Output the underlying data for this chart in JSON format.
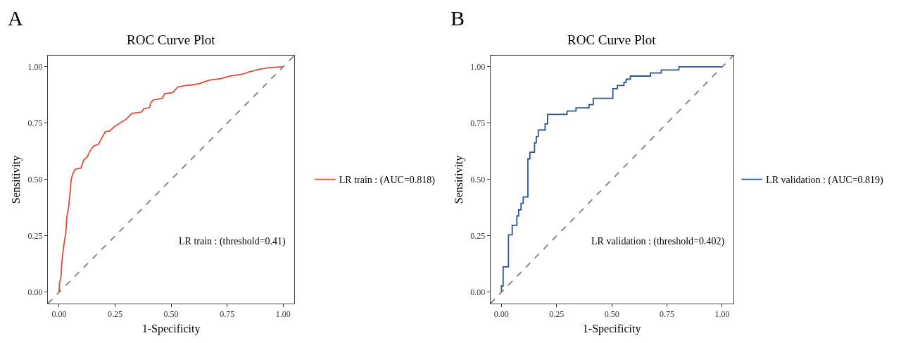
{
  "chart_data": [
    {
      "type": "line",
      "title": "ROC Curve Plot",
      "xlabel": "1-Specificity",
      "ylabel": "Sensitivity",
      "annotations": [
        "A",
        "LR train : (threshold=0.41)"
      ],
      "legend": "right",
      "xlim": [
        -0.05,
        1.05
      ],
      "ylim": [
        -0.05,
        1.05
      ],
      "xticks": [
        {
          "value": 0,
          "label": "0.00"
        },
        {
          "value": 0.25,
          "label": "0.25"
        },
        {
          "value": 0.5,
          "label": "0.50"
        },
        {
          "value": 0.75,
          "label": "0.75"
        },
        {
          "value": 1,
          "label": "1.00"
        }
      ],
      "yticks": [
        {
          "value": 0,
          "label": "0.00"
        },
        {
          "value": 0.25,
          "label": "0.25"
        },
        {
          "value": 0.5,
          "label": "0.50"
        },
        {
          "value": 0.75,
          "label": "0.75"
        },
        {
          "value": 1,
          "label": "1.00"
        }
      ],
      "series": [
        {
          "name": "LR train : (AUC=0.818)",
          "color": "#e64b35",
          "line_style": "solid",
          "x": [
            0,
            0.002,
            0.009,
            0.012,
            0.02,
            0.03,
            0.035,
            0.044,
            0.054,
            0.061,
            0.072,
            0.098,
            0.11,
            0.124,
            0.139,
            0.155,
            0.175,
            0.186,
            0.207,
            0.227,
            0.243,
            0.274,
            0.3,
            0.326,
            0.368,
            0.378,
            0.404,
            0.409,
            0.42,
            0.461,
            0.471,
            0.508,
            0.529,
            0.565,
            0.596,
            0.627,
            0.669,
            0.721,
            0.762,
            0.824,
            0.845,
            0.897,
            0.939,
            1
          ],
          "values": [
            0,
            0.04,
            0.071,
            0.128,
            0.2,
            0.262,
            0.334,
            0.386,
            0.499,
            0.525,
            0.546,
            0.551,
            0.587,
            0.598,
            0.628,
            0.649,
            0.656,
            0.675,
            0.713,
            0.716,
            0.732,
            0.752,
            0.768,
            0.794,
            0.799,
            0.814,
            0.819,
            0.84,
            0.853,
            0.861,
            0.881,
            0.886,
            0.91,
            0.917,
            0.92,
            0.926,
            0.941,
            0.948,
            0.959,
            0.969,
            0.977,
            0.99,
            0.997,
            1
          ]
        },
        {
          "color": "#808080",
          "line_style": "dashed",
          "x": [
            -0.05,
            1.05
          ],
          "values": [
            -0.05,
            1.05
          ]
        }
      ]
    },
    {
      "type": "step",
      "title": "ROC Curve Plot",
      "xlabel": "1-Specificity",
      "ylabel": "Sensitivity",
      "annotations": [
        "B",
        "LR validation : (threshold=0.402)"
      ],
      "legend": "right",
      "xlim": [
        -0.05,
        1.05
      ],
      "ylim": [
        -0.05,
        1.05
      ],
      "xticks": [
        {
          "value": 0,
          "label": "0.00"
        },
        {
          "value": 0.25,
          "label": "0.25"
        },
        {
          "value": 0.5,
          "label": "0.50"
        },
        {
          "value": 0.75,
          "label": "0.75"
        },
        {
          "value": 1,
          "label": "1.00"
        }
      ],
      "yticks": [
        {
          "value": 0,
          "label": "0.00"
        },
        {
          "value": 0.25,
          "label": "0.25"
        },
        {
          "value": 0.5,
          "label": "0.50"
        },
        {
          "value": 0.75,
          "label": "0.75"
        },
        {
          "value": 1,
          "label": "1.00"
        }
      ],
      "series": [
        {
          "name": "LR validation : (AUC=0.819)",
          "color": "#2a5599",
          "line_style": "solid",
          "x": [
            0,
            0,
            0.008,
            0.032,
            0.049,
            0.07,
            0.078,
            0.089,
            0.099,
            0.12,
            0.129,
            0.15,
            0.158,
            0.167,
            0.198,
            0.209,
            0.297,
            0.338,
            0.397,
            0.416,
            0.505,
            0.525,
            0.555,
            0.565,
            0.584,
            0.675,
            0.724,
            0.804,
            1
          ],
          "values": [
            0,
            0.028,
            0.113,
            0.255,
            0.297,
            0.339,
            0.366,
            0.395,
            0.423,
            0.592,
            0.621,
            0.663,
            0.691,
            0.72,
            0.747,
            0.789,
            0.804,
            0.818,
            0.832,
            0.86,
            0.903,
            0.917,
            0.931,
            0.945,
            0.959,
            0.973,
            0.986,
            1,
            1
          ]
        },
        {
          "type": "line",
          "color": "#808080",
          "line_style": "dashed",
          "x": [
            -0.05,
            1.05
          ],
          "values": [
            -0.05,
            1.05
          ]
        }
      ]
    }
  ]
}
